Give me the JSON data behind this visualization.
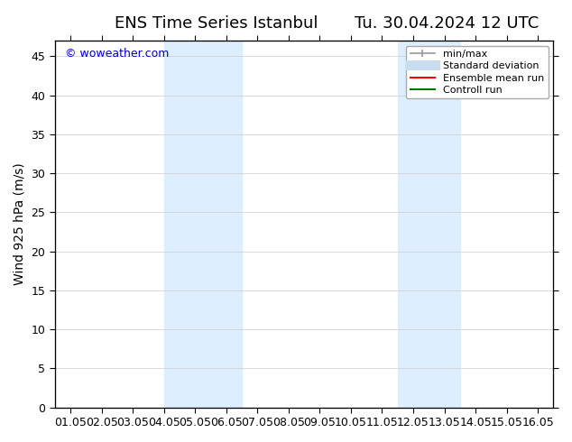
{
  "title_left": "ENS Time Series Istanbul",
  "title_right": "Tu. 30.04.2024 12 UTC",
  "ylabel": "Wind 925 hPa (m/s)",
  "xlabel": "",
  "ylim": [
    0,
    47
  ],
  "yticks": [
    0,
    5,
    10,
    15,
    20,
    25,
    30,
    35,
    40,
    45
  ],
  "xtick_labels": [
    "01.05",
    "02.05",
    "03.05",
    "04.05",
    "05.05",
    "06.05",
    "07.05",
    "08.05",
    "09.05",
    "10.05",
    "11.05",
    "12.05",
    "13.05",
    "14.05",
    "15.05",
    "16.05"
  ],
  "xtick_positions": [
    0,
    1,
    2,
    3,
    4,
    5,
    6,
    7,
    8,
    9,
    10,
    11,
    12,
    13,
    14,
    15
  ],
  "xlim": [
    -0.5,
    15.5
  ],
  "shaded_bands": [
    {
      "x_start": 3.0,
      "x_end": 5.5,
      "color": "#ddeeff"
    },
    {
      "x_start": 10.5,
      "x_end": 12.5,
      "color": "#ddeeff"
    }
  ],
  "watermark_text": "© woweather.com",
  "watermark_color": "#0000cc",
  "background_color": "#ffffff",
  "plot_bg_color": "#ffffff",
  "grid_color": "#cccccc",
  "legend_items": [
    {
      "label": "min/max",
      "color": "#aaaaaa",
      "lw": 1.5,
      "style": "|-|"
    },
    {
      "label": "Standard deviation",
      "color": "#ccddee",
      "lw": 8
    },
    {
      "label": "Ensemble mean run",
      "color": "#ff0000",
      "lw": 1.5
    },
    {
      "label": "Controll run",
      "color": "#007700",
      "lw": 1.5
    }
  ],
  "title_fontsize": 13,
  "tick_fontsize": 9,
  "ylabel_fontsize": 10
}
